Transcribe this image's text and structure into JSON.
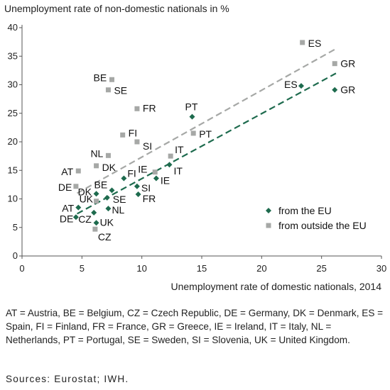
{
  "chart_data": {
    "type": "scatter",
    "title": "",
    "ylabel": "Unemployment rate of non-domestic nationals in %",
    "xlabel": "Unemployment rate of domestic nationals, 2014",
    "xlim": [
      0,
      30
    ],
    "ylim": [
      0,
      40
    ],
    "xticks": [
      0,
      5,
      10,
      15,
      20,
      25,
      30
    ],
    "yticks": [
      0,
      5,
      10,
      15,
      20,
      25,
      30,
      35,
      40
    ],
    "grid": false,
    "legend_position": "bottom-right",
    "series": [
      {
        "name": "from the EU",
        "color": "#1e6b4e",
        "marker": "diamond",
        "trendline": [
          [
            4.6,
            7.4
          ],
          [
            26.2,
            32.0
          ]
        ],
        "points": [
          {
            "label": "ES",
            "x": 23.3,
            "y": 29.8
          },
          {
            "label": "GR",
            "x": 26.1,
            "y": 29.1
          },
          {
            "label": "PT",
            "x": 14.2,
            "y": 24.4
          },
          {
            "label": "IT",
            "x": 12.3,
            "y": 16.0
          },
          {
            "label": "IE",
            "x": 11.2,
            "y": 13.6
          },
          {
            "label": "FI",
            "x": 8.5,
            "y": 13.6
          },
          {
            "label": "SI",
            "x": 9.6,
            "y": 12.2
          },
          {
            "label": "BE",
            "x": 7.5,
            "y": 11.5
          },
          {
            "label": "FR",
            "x": 9.7,
            "y": 10.8
          },
          {
            "label": "DK",
            "x": 6.2,
            "y": 10.9
          },
          {
            "label": "SE",
            "x": 7.1,
            "y": 10.2
          },
          {
            "label": "NL",
            "x": 7.2,
            "y": 8.3
          },
          {
            "label": "AT",
            "x": 4.7,
            "y": 8.5
          },
          {
            "label": "DE",
            "x": 4.5,
            "y": 6.8
          },
          {
            "label": "UK",
            "x": 6.2,
            "y": 5.8
          },
          {
            "label": "CZ",
            "x": 6.0,
            "y": 7.6
          }
        ]
      },
      {
        "name": "from outside the EU",
        "color": "#a6a8a6",
        "marker": "square",
        "trendline": [
          [
            4.6,
            11.0
          ],
          [
            26.2,
            36.3
          ]
        ],
        "points": [
          {
            "label": "ES",
            "x": 23.4,
            "y": 37.4
          },
          {
            "label": "GR",
            "x": 26.1,
            "y": 33.7
          },
          {
            "label": "BE",
            "x": 7.5,
            "y": 30.9
          },
          {
            "label": "SE",
            "x": 7.2,
            "y": 29.1
          },
          {
            "label": "FR",
            "x": 9.6,
            "y": 25.8
          },
          {
            "label": "PT",
            "x": 14.3,
            "y": 21.5
          },
          {
            "label": "FI",
            "x": 8.4,
            "y": 21.2
          },
          {
            "label": "SI",
            "x": 9.6,
            "y": 20.0
          },
          {
            "label": "NL",
            "x": 7.2,
            "y": 17.6
          },
          {
            "label": "IT",
            "x": 12.4,
            "y": 17.5
          },
          {
            "label": "DK",
            "x": 6.2,
            "y": 15.8
          },
          {
            "label": "AT",
            "x": 4.7,
            "y": 14.9
          },
          {
            "label": "IE",
            "x": 11.1,
            "y": 14.7
          },
          {
            "label": "DE",
            "x": 4.5,
            "y": 12.2
          },
          {
            "label": "UK",
            "x": 6.2,
            "y": 9.6
          },
          {
            "label": "CZ",
            "x": 6.1,
            "y": 4.7
          }
        ]
      }
    ]
  },
  "footnote": {
    "abbreviations": "AT = Austria, BE = Belgium, CZ = Czech Republic, DE = Germany, DK = Denmark, ES = Spain, FI = Finland, FR = France, GR = Greece, IE = Ireland, IT = Italy, NL = Netherlands, PT = Portugal, SE = Sweden, SI = Slovenia, UK = United Kingdom.",
    "sources": "Sources: Eurostat; IWH."
  }
}
